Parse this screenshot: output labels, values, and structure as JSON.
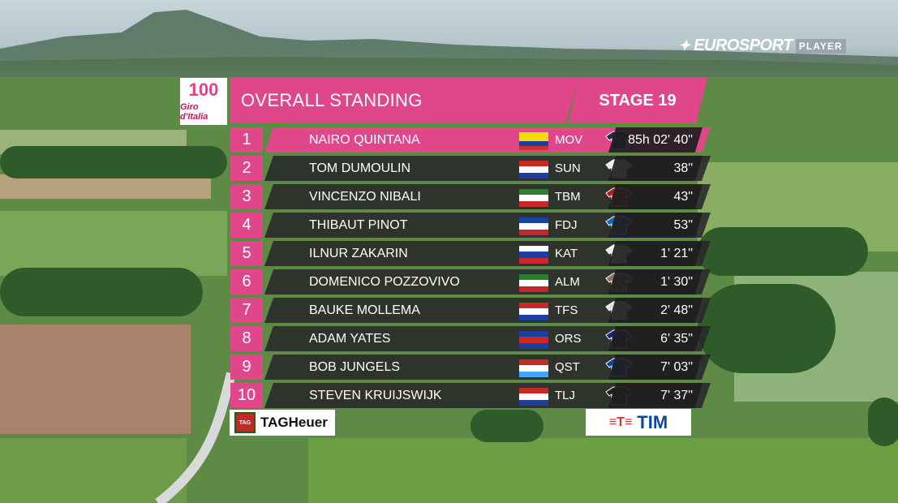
{
  "broadcaster": {
    "brand": "EUROSPORT",
    "suffix": "PLAYER"
  },
  "race_logo": {
    "number": "100",
    "name": "Giro d'Italia"
  },
  "header": {
    "title": "OVERALL STANDING",
    "stage": "STAGE 19"
  },
  "standings": [
    {
      "pos": "1",
      "rider": "NAIRO QUINTANA",
      "team": "MOV",
      "gap": "85h 02' 40\"",
      "flag": [
        "#f5d90a",
        "#f5d90a",
        "#1a3fa0",
        "#d32f2f"
      ],
      "jersey": "#1c2a4a"
    },
    {
      "pos": "2",
      "rider": "TOM DUMOULIN",
      "team": "SUN",
      "gap": "38\"",
      "flag": [
        "#c62828",
        "#ffffff",
        "#1a3fa0"
      ],
      "jersey": "#f0f0f0"
    },
    {
      "pos": "3",
      "rider": "VINCENZO NIBALI",
      "team": "TBM",
      "gap": "43\"",
      "flag": [
        "#2e7d32",
        "#ffffff",
        "#c62828"
      ],
      "jersey": "#b71c1c"
    },
    {
      "pos": "4",
      "rider": "THIBAUT PINOT",
      "team": "FDJ",
      "gap": "53\"",
      "flag": [
        "#1a3fa0",
        "#ffffff",
        "#c62828"
      ],
      "jersey": "#1565c0"
    },
    {
      "pos": "5",
      "rider": "ILNUR ZAKARIN",
      "team": "KAT",
      "gap": "1' 21\"",
      "flag": [
        "#ffffff",
        "#1a3fa0",
        "#c62828"
      ],
      "jersey": "#eeeeee"
    },
    {
      "pos": "6",
      "rider": "DOMENICO POZZOVIVO",
      "team": "ALM",
      "gap": "1' 30\"",
      "flag": [
        "#2e7d32",
        "#ffffff",
        "#c62828"
      ],
      "jersey": "#8d6e63"
    },
    {
      "pos": "7",
      "rider": "BAUKE MOLLEMA",
      "team": "TFS",
      "gap": "2' 48\"",
      "flag": [
        "#c62828",
        "#ffffff",
        "#1a3fa0"
      ],
      "jersey": "#e0e0e0"
    },
    {
      "pos": "8",
      "rider": "ADAM YATES",
      "team": "ORS",
      "gap": "6' 35\"",
      "flag": [
        "#1a3fa0",
        "#c62828",
        "#1a3fa0"
      ],
      "jersey": "#1a237e"
    },
    {
      "pos": "9",
      "rider": "BOB JUNGELS",
      "team": "QST",
      "gap": "7' 03\"",
      "flag": [
        "#c62828",
        "#ffffff",
        "#42a5f5"
      ],
      "jersey": "#0d47a1"
    },
    {
      "pos": "10",
      "rider": "STEVEN KRUIJSWIJK",
      "team": "TLJ",
      "gap": "7' 37\"",
      "flag": [
        "#c62828",
        "#ffffff",
        "#1a3fa0"
      ],
      "jersey": "#212121"
    }
  ],
  "sponsors": {
    "left": "TAGHeuer",
    "left_badge": "TAG",
    "right": "TIM"
  },
  "colors": {
    "accent": "#e0478a",
    "row_bg": "#282828"
  }
}
